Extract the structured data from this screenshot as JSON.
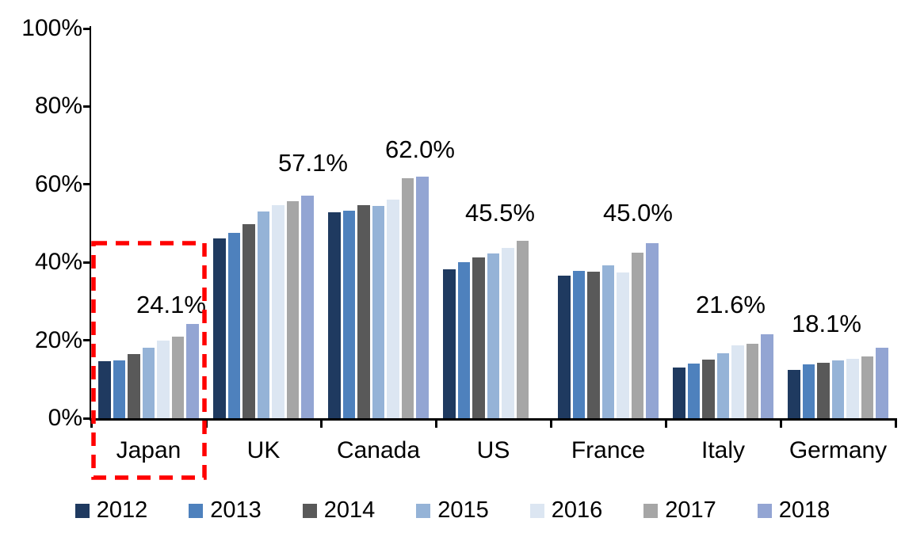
{
  "chart_data": {
    "type": "bar",
    "title": "",
    "unit": "%",
    "categories": [
      "Japan",
      "UK",
      "Canada",
      "US",
      "France",
      "Italy",
      "Germany"
    ],
    "series": [
      {
        "name": "2012",
        "color": "#1F3A60",
        "values": [
          14.7,
          46.2,
          52.8,
          38.3,
          36.5,
          13.1,
          12.3
        ]
      },
      {
        "name": "2013",
        "color": "#4E81BD",
        "values": [
          14.9,
          47.5,
          53.2,
          40.1,
          37.8,
          14.0,
          13.8
        ]
      },
      {
        "name": "2014",
        "color": "#595959",
        "values": [
          16.4,
          49.8,
          54.7,
          41.2,
          37.7,
          15.0,
          14.3
        ]
      },
      {
        "name": "2015",
        "color": "#95B3D7",
        "values": [
          18.0,
          53.0,
          54.5,
          42.3,
          39.2,
          16.6,
          14.8
        ]
      },
      {
        "name": "2016",
        "color": "#DCE6F2",
        "values": [
          19.9,
          54.6,
          56.0,
          43.7,
          37.3,
          18.7,
          15.3
        ]
      },
      {
        "name": "2017",
        "color": "#A6A6A6",
        "values": [
          21.0,
          55.7,
          61.5,
          45.5,
          42.4,
          19.1,
          15.9
        ]
      },
      {
        "name": "2018",
        "color": "#93A5D3",
        "values": [
          24.1,
          57.1,
          62.0,
          null,
          45.0,
          21.6,
          18.1
        ]
      }
    ],
    "data_labels": [
      "24.1%",
      "57.1%",
      "62.0%",
      "45.5%",
      "45.0%",
      "21.6%",
      "18.1%"
    ],
    "y_axis": {
      "tick_labels": [
        "0%",
        "20%",
        "40%",
        "60%",
        "80%",
        "100%"
      ],
      "min": 0,
      "max": 100,
      "step": 20
    },
    "grid": "off",
    "legend": {
      "position": "bottom",
      "entries": [
        "2012",
        "2013",
        "2014",
        "2015",
        "2016",
        "2017",
        "2018"
      ]
    },
    "highlight": {
      "category": "Japan",
      "shape": "dashed-rectangle",
      "color": "#FF0000"
    }
  }
}
